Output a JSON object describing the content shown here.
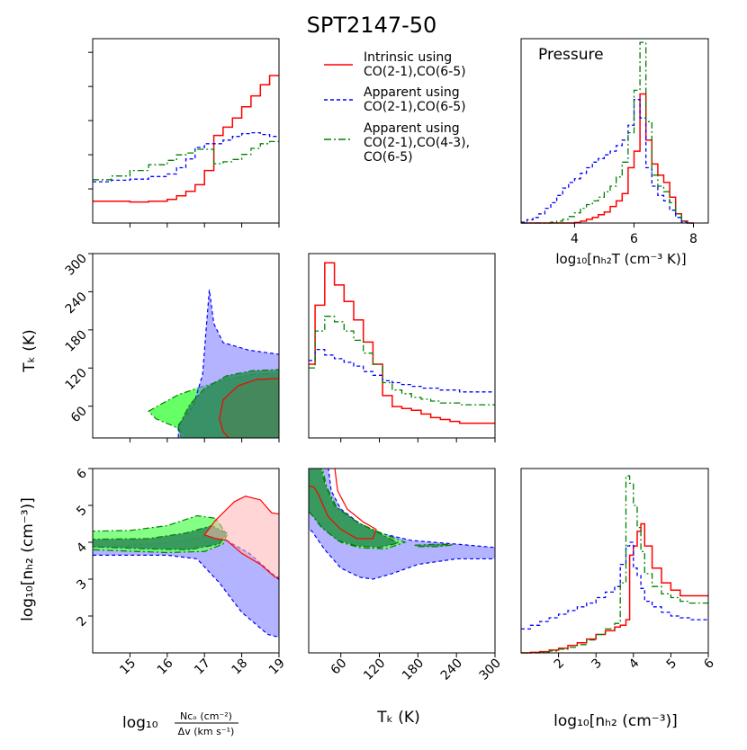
{
  "title": "SPT2147-50",
  "colors": {
    "intrinsic": "#ff0000",
    "apparent2": "#0000ff",
    "apparent3": "#008000",
    "fill_intrinsic": "#ffb3b3",
    "fill_apparent2": "#8080ff",
    "fill_apparent3_inner": "#2e8b57",
    "fill_apparent3_outer": "#66ff66"
  },
  "legend": {
    "intrinsic_1": "Intrinsic using",
    "intrinsic_2": "CO(2-1),CO(6-5)",
    "apparent2_1": "Apparent using",
    "apparent2_2": "CO(2-1),CO(6-5)",
    "apparent3_1": "Apparent using",
    "apparent3_2": "CO(2-1),CO(4-3),",
    "apparent3_3": "CO(6-5)"
  },
  "labels": {
    "pressure_title": "Pressure",
    "pressure_xlabel": "log₁₀[nₕ₂T (cm⁻³ K)]",
    "tk_ylabel": "Tₖ (K)",
    "nh2_ylabel": "log₁₀[nₕ₂ (cm⁻³)]",
    "x1_prefix": "log₁₀",
    "x1_num": "Nᴄₒ (cm⁻²)",
    "x1_den": "Δv (km s⁻¹)",
    "x2": "Tₖ (K)",
    "x3": "log₁₀[nₕ₂ (cm⁻³)]"
  },
  "chart_data": [
    {
      "id": "ncol-hist",
      "type": "histogram",
      "xlabel": "log10[N_CO (cm^-2) / Δv (km s^-1)]",
      "xlim": [
        14,
        19
      ],
      "bins": [
        14.0,
        14.5,
        15.0,
        15.5,
        16.0,
        16.25,
        16.5,
        16.75,
        17.0,
        17.25,
        17.5,
        17.75,
        18.0,
        18.25,
        18.5,
        18.75,
        19.0
      ],
      "series": [
        {
          "name": "Intrinsic using CO(2-1),CO(6-5)",
          "values": [
            0.118,
            0.118,
            0.114,
            0.118,
            0.128,
            0.148,
            0.172,
            0.208,
            0.285,
            0.475,
            0.52,
            0.57,
            0.63,
            0.69,
            0.75,
            0.8
          ]
        },
        {
          "name": "Apparent using CO(2-1),CO(6-5)",
          "values": [
            0.224,
            0.232,
            0.238,
            0.252,
            0.266,
            0.3,
            0.348,
            0.41,
            0.43,
            0.43,
            0.45,
            0.47,
            0.485,
            0.49,
            0.48,
            0.47
          ]
        },
        {
          "name": "Apparent using CO(2-1),CO(4-3),CO(6-5)",
          "values": [
            0.235,
            0.255,
            0.285,
            0.316,
            0.34,
            0.37,
            0.38,
            0.4,
            0.4,
            0.322,
            0.332,
            0.345,
            0.372,
            0.405,
            0.43,
            0.442
          ]
        }
      ]
    },
    {
      "id": "pressure-hist",
      "type": "histogram",
      "title": "Pressure",
      "xlabel": "log10[n_H2 T (cm^-3 K)]",
      "xlim": [
        2.2,
        8.5
      ],
      "xticks": [
        4,
        6,
        8
      ],
      "bins": [
        2.2,
        2.4,
        2.6,
        2.8,
        3.0,
        3.2,
        3.4,
        3.6,
        3.8,
        4.0,
        4.2,
        4.4,
        4.6,
        4.8,
        5.0,
        5.2,
        5.4,
        5.6,
        5.8,
        6.0,
        6.2,
        6.4,
        6.6,
        6.8,
        7.0,
        7.2,
        7.4,
        7.6,
        7.8,
        8.0
      ],
      "series": [
        {
          "name": "Intrinsic using CO(2-1),CO(6-5)",
          "values": [
            0,
            0,
            0,
            0,
            0,
            0,
            0,
            0,
            0,
            0.003,
            0.01,
            0.02,
            0.03,
            0.045,
            0.06,
            0.09,
            0.12,
            0.16,
            0.3,
            0.39,
            0.7,
            0.45,
            0.32,
            0.26,
            0.22,
            0.14,
            0.05,
            0.01,
            0
          ]
        },
        {
          "name": "Apparent using CO(2-1),CO(6-5)",
          "values": [
            0.005,
            0.018,
            0.03,
            0.05,
            0.08,
            0.11,
            0.15,
            0.19,
            0.22,
            0.24,
            0.27,
            0.3,
            0.33,
            0.35,
            0.37,
            0.39,
            0.42,
            0.45,
            0.53,
            0.67,
            0.57,
            0.3,
            0.2,
            0.15,
            0.12,
            0.07,
            0.03,
            0.005,
            0
          ]
        },
        {
          "name": "Apparent using CO(2-1),CO(4-3),CO(6-5)",
          "values": [
            0,
            0,
            0,
            0,
            0,
            0.005,
            0.01,
            0.02,
            0.035,
            0.055,
            0.08,
            0.1,
            0.12,
            0.14,
            0.17,
            0.2,
            0.25,
            0.33,
            0.49,
            0.72,
            0.98,
            0.55,
            0.26,
            0.2,
            0.17,
            0.11,
            0.05,
            0.01,
            0
          ]
        }
      ]
    },
    {
      "id": "tk-ncol-contour",
      "type": "contour",
      "xlim": [
        14,
        19
      ],
      "ylim": [
        10,
        300
      ],
      "ylabel": "T_k (K)",
      "yticks": [
        60,
        120,
        180,
        240,
        300
      ]
    },
    {
      "id": "tk-hist",
      "type": "histogram",
      "xlim": [
        10,
        300
      ],
      "bins": [
        10,
        20,
        35,
        50,
        65,
        80,
        95,
        110,
        125,
        140,
        155,
        170,
        185,
        200,
        215,
        230,
        245,
        260,
        275,
        290,
        300
      ],
      "series": [
        {
          "name": "Intrinsic using CO(2-1),CO(6-5)",
          "values": [
            0.4,
            0.72,
            0.95,
            0.83,
            0.74,
            0.64,
            0.52,
            0.4,
            0.23,
            0.17,
            0.16,
            0.15,
            0.13,
            0.11,
            0.1,
            0.09,
            0.08,
            0.08,
            0.08,
            0.08
          ]
        },
        {
          "name": "Apparent using CO(2-1),CO(6-5)",
          "values": [
            0.42,
            0.48,
            0.45,
            0.43,
            0.41,
            0.39,
            0.36,
            0.34,
            0.31,
            0.3,
            0.29,
            0.28,
            0.27,
            0.27,
            0.26,
            0.26,
            0.25,
            0.25,
            0.25,
            0.25
          ]
        },
        {
          "name": "Apparent using CO(2-1),CO(4-3),CO(6-5)",
          "values": [
            0.38,
            0.58,
            0.66,
            0.63,
            0.58,
            0.53,
            0.46,
            0.4,
            0.3,
            0.26,
            0.24,
            0.22,
            0.21,
            0.2,
            0.19,
            0.19,
            0.18,
            0.18,
            0.18,
            0.18
          ]
        }
      ]
    },
    {
      "id": "nh2-ncol-contour",
      "type": "contour",
      "xlim": [
        14,
        19
      ],
      "ylim": [
        1,
        6
      ],
      "xticks": [
        15,
        16,
        17,
        18,
        19
      ],
      "ylabel": "log10[n_H2 (cm^-3)]",
      "yticks": [
        2,
        3,
        4,
        5,
        6
      ]
    },
    {
      "id": "nh2-tk-contour",
      "type": "contour",
      "xlim": [
        10,
        300
      ],
      "ylim": [
        1,
        6
      ],
      "xticks": [
        60,
        120,
        180,
        240,
        300
      ]
    },
    {
      "id": "nh2-hist",
      "type": "histogram",
      "xlim": [
        1,
        6
      ],
      "xticks": [
        2,
        3,
        4,
        5,
        6
      ],
      "bins": [
        1.0,
        1.25,
        1.5,
        1.75,
        2.0,
        2.25,
        2.5,
        2.75,
        3.0,
        3.25,
        3.5,
        3.65,
        3.8,
        3.9,
        4.0,
        4.1,
        4.2,
        4.3,
        4.5,
        4.75,
        5.0,
        5.25,
        5.5,
        5.75,
        6.0
      ],
      "series": [
        {
          "name": "Intrinsic using CO(2-1),CO(6-5)",
          "values": [
            0,
            0.003,
            0.007,
            0.015,
            0.025,
            0.04,
            0.055,
            0.075,
            0.1,
            0.12,
            0.14,
            0.15,
            0.18,
            0.53,
            0.58,
            0.66,
            0.7,
            0.58,
            0.46,
            0.38,
            0.34,
            0.31,
            0.31,
            0.31
          ]
        },
        {
          "name": "Apparent using CO(2-1),CO(6-5)",
          "values": [
            0.13,
            0.15,
            0.17,
            0.19,
            0.21,
            0.23,
            0.25,
            0.27,
            0.3,
            0.33,
            0.36,
            0.48,
            0.58,
            0.6,
            0.46,
            0.42,
            0.35,
            0.28,
            0.25,
            0.22,
            0.2,
            0.19,
            0.18,
            0.18
          ]
        },
        {
          "name": "Apparent using CO(2-1),CO(4-3),CO(6-5)",
          "values": [
            0,
            0,
            0.005,
            0.01,
            0.02,
            0.03,
            0.045,
            0.07,
            0.1,
            0.13,
            0.16,
            0.38,
            0.96,
            0.92,
            0.8,
            0.68,
            0.55,
            0.43,
            0.36,
            0.32,
            0.3,
            0.28,
            0.27,
            0.27
          ]
        }
      ]
    }
  ]
}
